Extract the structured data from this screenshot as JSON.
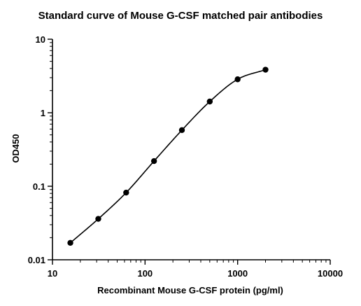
{
  "chart_data": {
    "type": "scatter",
    "title": "Standard curve of Mouse G-CSF matched pair antibodies",
    "xlabel": "Recombinant Mouse G-CSF protein (pg/ml)",
    "ylabel": "OD450",
    "x_scale": "log",
    "y_scale": "log",
    "xlim": [
      10,
      10000
    ],
    "ylim": [
      0.01,
      10
    ],
    "x_ticks": [
      {
        "value": 10,
        "label": "10"
      },
      {
        "value": 100,
        "label": "100"
      },
      {
        "value": 1000,
        "label": "1000"
      },
      {
        "value": 10000,
        "label": "10000"
      }
    ],
    "y_ticks": [
      {
        "value": 0.01,
        "label": "0.01"
      },
      {
        "value": 0.1,
        "label": "0.1"
      },
      {
        "value": 1,
        "label": "1"
      },
      {
        "value": 10,
        "label": "10"
      }
    ],
    "grid": false,
    "marker_color": "#000000",
    "line_color": "#000000",
    "series": [
      {
        "x": [
          15.6,
          31.25,
          62.5,
          125,
          250,
          500,
          1000,
          2000
        ],
        "y": [
          0.017,
          0.036,
          0.082,
          0.22,
          0.58,
          1.42,
          2.85,
          3.85
        ],
        "fit": "smooth-curve"
      }
    ]
  }
}
